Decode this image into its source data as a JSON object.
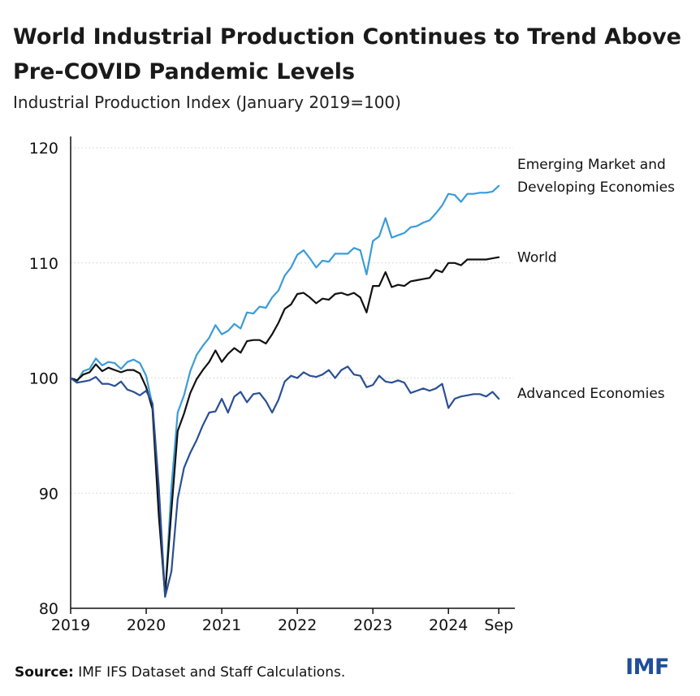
{
  "title": "World Industrial Production Continues to Trend Above Pre-COVID Pandemic Levels",
  "subtitle": "Industrial Production Index (January 2019=100)",
  "footer": {
    "source_label": "Source:",
    "source_text": " IMF IFS Dataset and Staff Calculations."
  },
  "logo": "IMF",
  "colors": {
    "emerging": "#3b9bd8",
    "world": "#111111",
    "advanced": "#2a4f93",
    "axis": "#111111",
    "grid": "#d0d0d0"
  },
  "chart_data": {
    "type": "line",
    "title": "World Industrial Production Continues to Trend Above Pre-COVID Pandemic Levels",
    "ylabel": "Industrial Production Index (January 2019=100)",
    "ylim": [
      80,
      120
    ],
    "yticks": [
      80,
      90,
      100,
      110,
      120
    ],
    "xlim": [
      0,
      69
    ],
    "xticks": [
      {
        "pos": 0,
        "label": "2019"
      },
      {
        "pos": 12,
        "label": "2020"
      },
      {
        "pos": 24,
        "label": "2021"
      },
      {
        "pos": 36,
        "label": "2022"
      },
      {
        "pos": 48,
        "label": "2023"
      },
      {
        "pos": 60,
        "label": "2024"
      },
      {
        "pos": 68,
        "label": "Sep"
      }
    ],
    "grid": "horizontal dotted",
    "x_note": "monthly, Jan 2019 (0) to Sep 2024 (68)",
    "series": [
      {
        "name": "Emerging Market and Developing Economies",
        "label_lines": [
          "Emerging Market and",
          "Developing Economies"
        ],
        "color_key": "emerging",
        "values": [
          100.0,
          99.7,
          100.6,
          100.8,
          101.7,
          101.1,
          101.4,
          101.3,
          100.8,
          101.4,
          101.6,
          101.3,
          100.2,
          97.6,
          89.0,
          81.0,
          90.5,
          97.0,
          98.5,
          100.6,
          102.0,
          102.8,
          103.5,
          104.6,
          103.8,
          104.1,
          104.7,
          104.3,
          105.7,
          105.6,
          106.2,
          106.1,
          107.0,
          107.6,
          108.9,
          109.6,
          110.7,
          111.1,
          110.4,
          109.6,
          110.2,
          110.1,
          110.8,
          110.8,
          110.8,
          111.3,
          111.1,
          109.0,
          111.9,
          112.3,
          113.9,
          112.2,
          112.4,
          112.6,
          113.1,
          113.2,
          113.5,
          113.7,
          114.3,
          115.0,
          116.0,
          115.9,
          115.3,
          116.0,
          116.0,
          116.1,
          116.1,
          116.2,
          116.7
        ]
      },
      {
        "name": "World",
        "label_lines": [
          "World"
        ],
        "color_key": "world",
        "values": [
          100.0,
          99.8,
          100.3,
          100.5,
          101.2,
          100.6,
          100.9,
          100.7,
          100.5,
          100.7,
          100.7,
          100.4,
          99.2,
          97.3,
          88.0,
          81.2,
          88.5,
          95.4,
          96.9,
          98.7,
          99.9,
          100.7,
          101.4,
          102.4,
          101.4,
          102.1,
          102.6,
          102.2,
          103.2,
          103.3,
          103.3,
          103.0,
          103.8,
          104.8,
          106.0,
          106.4,
          107.3,
          107.4,
          107.0,
          106.5,
          106.9,
          106.8,
          107.3,
          107.4,
          107.2,
          107.4,
          107.0,
          105.7,
          108.0,
          108.0,
          109.2,
          107.9,
          108.1,
          108.0,
          108.4,
          108.5,
          108.6,
          108.7,
          109.4,
          109.2,
          110.0,
          110.0,
          109.8,
          110.3,
          110.3,
          110.3,
          110.3,
          110.4,
          110.5
        ]
      },
      {
        "name": "Advanced Economies",
        "label_lines": [
          "Advanced Economies"
        ],
        "color_key": "advanced",
        "values": [
          100.0,
          99.6,
          99.7,
          99.8,
          100.1,
          99.5,
          99.5,
          99.3,
          99.7,
          99.0,
          98.8,
          98.5,
          98.9,
          97.8,
          90.5,
          81.0,
          83.2,
          89.5,
          92.2,
          93.5,
          94.6,
          95.9,
          97.0,
          97.1,
          98.2,
          97.0,
          98.4,
          98.8,
          97.9,
          98.6,
          98.7,
          98.0,
          97.0,
          98.1,
          99.7,
          100.2,
          100.0,
          100.5,
          100.2,
          100.1,
          100.3,
          100.7,
          100.0,
          100.7,
          101.0,
          100.3,
          100.2,
          99.2,
          99.4,
          100.2,
          99.7,
          99.6,
          99.8,
          99.6,
          98.7,
          98.9,
          99.1,
          98.9,
          99.1,
          99.5,
          97.4,
          98.2,
          98.4,
          98.5,
          98.6,
          98.6,
          98.4,
          98.8,
          98.2
        ]
      }
    ]
  }
}
